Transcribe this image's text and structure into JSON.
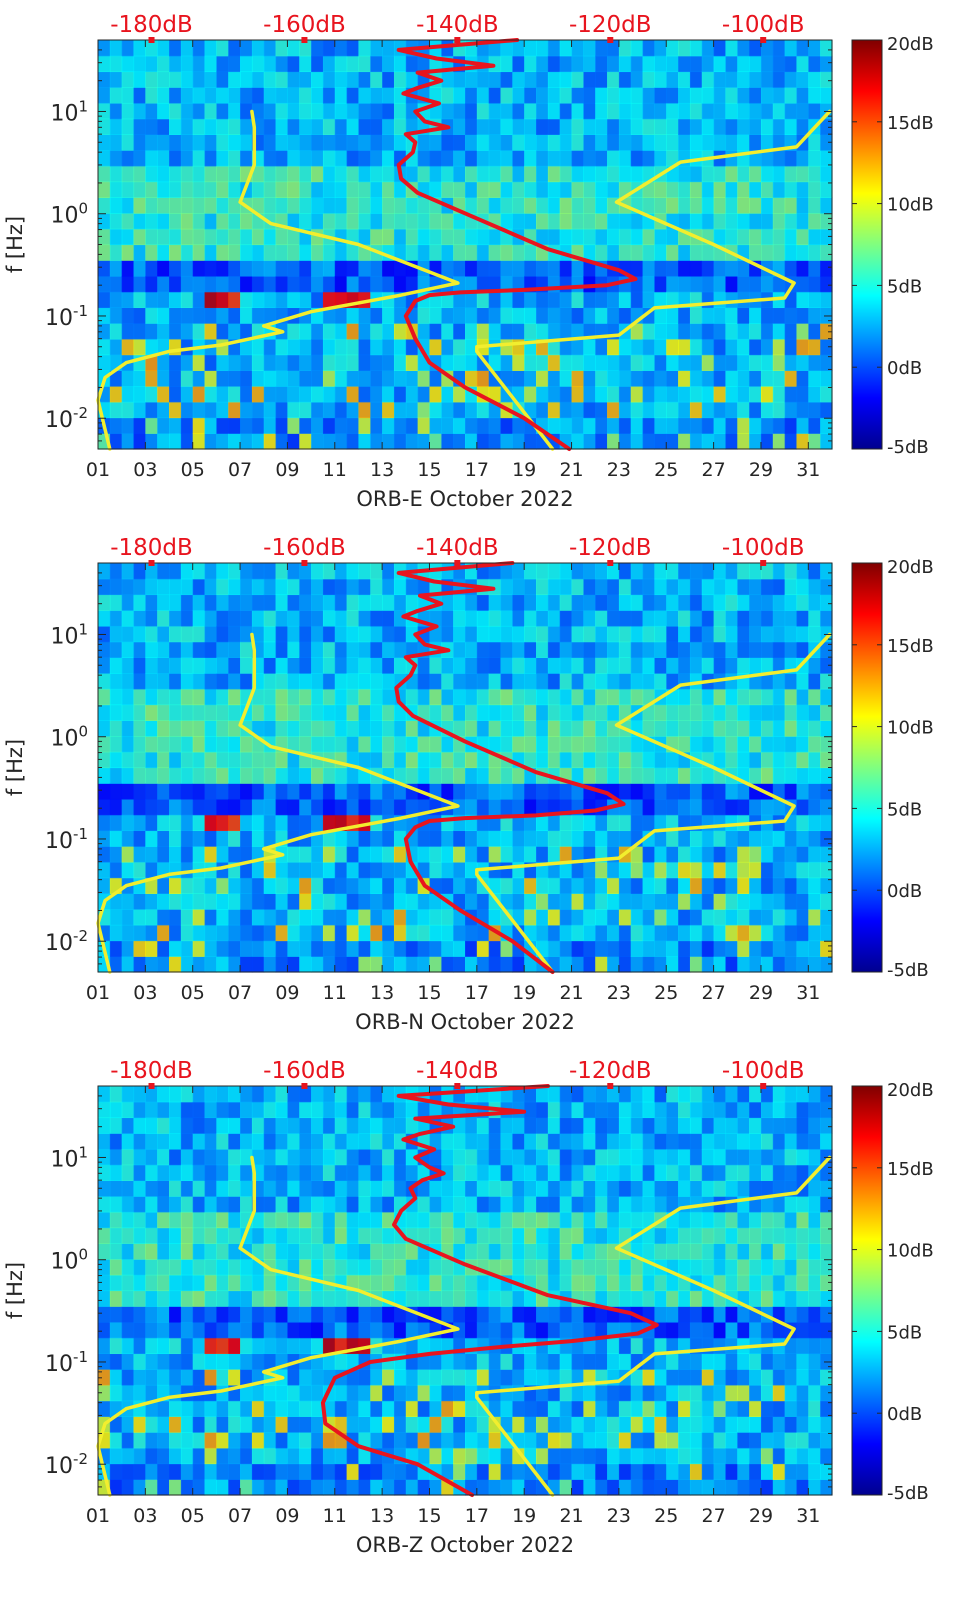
{
  "chart_data": [
    {
      "type": "heatmap",
      "title": "",
      "xlabel": "ORB-E October 2022",
      "ylabel": "f [Hz]",
      "x_ticks": [
        "01",
        "03",
        "05",
        "07",
        "09",
        "11",
        "13",
        "15",
        "17",
        "19",
        "21",
        "23",
        "25",
        "27",
        "29",
        "31"
      ],
      "x_tick_values": [
        1,
        3,
        5,
        7,
        9,
        11,
        13,
        15,
        17,
        19,
        21,
        23,
        25,
        27,
        29,
        31
      ],
      "xlim": [
        1,
        32
      ],
      "yscale": "log",
      "ylim": [
        0.005,
        50
      ],
      "y_ticks": [
        "10^{-2}",
        "10^{-1}",
        "10^{0}",
        "10^{1}"
      ],
      "top_axis_ticks": [
        "-180dB",
        "-160dB",
        "-140dB",
        "-120dB",
        "-100dB"
      ],
      "top_axis_range_dB": [
        -187,
        -91
      ],
      "colorbar": {
        "ticks": [
          "-5dB",
          "0dB",
          "5dB",
          "10dB",
          "15dB",
          "20dB"
        ],
        "range": [
          -5,
          20
        ]
      },
      "series": [
        {
          "name": "noise-model-low",
          "color": "#f2ee2e",
          "x": [
            1.5,
            1.0,
            1.3,
            2.2,
            4.0,
            6.2,
            8.8,
            8.0,
            10.0,
            13.8,
            16.2,
            12.0,
            8.3,
            7.0,
            7.6,
            7.6,
            7.5
          ],
          "y": [
            0.005,
            0.015,
            0.025,
            0.035,
            0.045,
            0.052,
            0.07,
            0.08,
            0.11,
            0.16,
            0.21,
            0.5,
            0.8,
            1.3,
            3.0,
            7.0,
            10.0
          ]
        },
        {
          "name": "noise-model-high",
          "color": "#f2ee2e",
          "x": [
            20.2,
            17.0,
            17.0,
            23.0,
            24.5,
            30.0,
            30.4,
            27.0,
            22.9,
            25.6,
            30.5,
            31.9
          ],
          "y": [
            0.005,
            0.045,
            0.05,
            0.065,
            0.12,
            0.15,
            0.21,
            0.5,
            1.3,
            3.2,
            4.5,
            10.0
          ]
        },
        {
          "name": "psd-median",
          "color": "#e8141e",
          "x": [
            20.9,
            19.0,
            16.5,
            15.0,
            14.4,
            14.0,
            14.4,
            15.0,
            16.3,
            19.0,
            22.5,
            23.7,
            23.0,
            20.0,
            17.0,
            14.5,
            13.8,
            13.7,
            14.3,
            14.4,
            14.0,
            15.8,
            14.8,
            14.4,
            15.4,
            13.9,
            14.5,
            15.5,
            14.5,
            17.7,
            15.3,
            13.7,
            18.7
          ],
          "y": [
            0.005,
            0.01,
            0.02,
            0.035,
            0.06,
            0.1,
            0.14,
            0.16,
            0.17,
            0.18,
            0.2,
            0.23,
            0.28,
            0.45,
            0.9,
            1.6,
            2.2,
            3.0,
            4.0,
            5.0,
            6.0,
            7.0,
            8.0,
            10.0,
            12.0,
            15.0,
            17.0,
            20.0,
            24.0,
            28.0,
            33.0,
            40.0,
            50.0
          ]
        }
      ]
    },
    {
      "type": "heatmap",
      "title": "",
      "xlabel": "ORB-N October 2022",
      "ylabel": "f [Hz]",
      "x_ticks": [
        "01",
        "03",
        "05",
        "07",
        "09",
        "11",
        "13",
        "15",
        "17",
        "19",
        "21",
        "23",
        "25",
        "27",
        "29",
        "31"
      ],
      "x_tick_values": [
        1,
        3,
        5,
        7,
        9,
        11,
        13,
        15,
        17,
        19,
        21,
        23,
        25,
        27,
        29,
        31
      ],
      "xlim": [
        1,
        32
      ],
      "yscale": "log",
      "ylim": [
        0.005,
        50
      ],
      "y_ticks": [
        "10^{-2}",
        "10^{-1}",
        "10^{0}",
        "10^{1}"
      ],
      "top_axis_ticks": [
        "-180dB",
        "-160dB",
        "-140dB",
        "-120dB",
        "-100dB"
      ],
      "top_axis_range_dB": [
        -187,
        -91
      ],
      "colorbar": {
        "ticks": [
          "-5dB",
          "0dB",
          "5dB",
          "10dB",
          "15dB",
          "20dB"
        ],
        "range": [
          -5,
          20
        ]
      },
      "series": [
        {
          "name": "noise-model-low",
          "color": "#f2ee2e",
          "x": [
            1.5,
            1.0,
            1.3,
            2.2,
            4.0,
            6.2,
            8.8,
            8.0,
            10.0,
            13.8,
            16.2,
            12.0,
            8.3,
            7.0,
            7.6,
            7.6,
            7.5
          ],
          "y": [
            0.005,
            0.015,
            0.025,
            0.035,
            0.045,
            0.052,
            0.07,
            0.08,
            0.11,
            0.16,
            0.21,
            0.5,
            0.8,
            1.3,
            3.0,
            7.0,
            10.0
          ]
        },
        {
          "name": "noise-model-high",
          "color": "#f2ee2e",
          "x": [
            20.2,
            17.0,
            17.0,
            23.0,
            24.5,
            30.0,
            30.4,
            27.0,
            22.9,
            25.6,
            30.5,
            31.9
          ],
          "y": [
            0.005,
            0.045,
            0.05,
            0.065,
            0.12,
            0.15,
            0.21,
            0.5,
            1.3,
            3.2,
            4.5,
            10.0
          ]
        },
        {
          "name": "psd-median",
          "color": "#e8141e",
          "x": [
            20.2,
            18.5,
            16.3,
            14.8,
            14.2,
            14.0,
            14.4,
            15.0,
            16.5,
            19.5,
            22.0,
            23.2,
            22.5,
            19.5,
            16.5,
            14.3,
            13.7,
            13.6,
            14.2,
            14.4,
            14.0,
            15.8,
            14.8,
            14.4,
            15.3,
            13.9,
            14.5,
            15.5,
            14.6,
            17.7,
            15.2,
            13.7,
            18.5
          ],
          "y": [
            0.005,
            0.01,
            0.02,
            0.035,
            0.06,
            0.1,
            0.13,
            0.15,
            0.16,
            0.17,
            0.19,
            0.22,
            0.28,
            0.45,
            0.9,
            1.6,
            2.2,
            3.0,
            4.0,
            5.0,
            6.0,
            7.0,
            8.0,
            10.0,
            12.0,
            15.0,
            17.0,
            20.0,
            24.0,
            28.0,
            33.0,
            40.0,
            50.0
          ]
        }
      ]
    },
    {
      "type": "heatmap",
      "title": "",
      "xlabel": "ORB-Z October 2022",
      "ylabel": "f [Hz]",
      "x_ticks": [
        "01",
        "03",
        "05",
        "07",
        "09",
        "11",
        "13",
        "15",
        "17",
        "19",
        "21",
        "23",
        "25",
        "27",
        "29",
        "31"
      ],
      "x_tick_values": [
        1,
        3,
        5,
        7,
        9,
        11,
        13,
        15,
        17,
        19,
        21,
        23,
        25,
        27,
        29,
        31
      ],
      "xlim": [
        1,
        32
      ],
      "yscale": "log",
      "ylim": [
        0.005,
        50
      ],
      "y_ticks": [
        "10^{-2}",
        "10^{-1}",
        "10^{0}",
        "10^{1}"
      ],
      "top_axis_ticks": [
        "-180dB",
        "-160dB",
        "-140dB",
        "-120dB",
        "-100dB"
      ],
      "top_axis_range_dB": [
        -187,
        -91
      ],
      "colorbar": {
        "ticks": [
          "-5dB",
          "0dB",
          "5dB",
          "10dB",
          "15dB",
          "20dB"
        ],
        "range": [
          -5,
          20
        ]
      },
      "series": [
        {
          "name": "noise-model-low",
          "color": "#f2ee2e",
          "x": [
            1.5,
            1.0,
            1.3,
            2.2,
            4.0,
            6.2,
            8.8,
            8.0,
            10.0,
            13.8,
            16.2,
            12.0,
            8.3,
            7.0,
            7.6,
            7.6,
            7.5
          ],
          "y": [
            0.005,
            0.015,
            0.025,
            0.035,
            0.045,
            0.052,
            0.07,
            0.08,
            0.11,
            0.16,
            0.21,
            0.5,
            0.8,
            1.3,
            3.0,
            7.0,
            10.0
          ]
        },
        {
          "name": "noise-model-high",
          "color": "#f2ee2e",
          "x": [
            20.2,
            17.0,
            17.0,
            23.0,
            24.5,
            30.0,
            30.4,
            27.0,
            22.9,
            25.6,
            30.5,
            31.9
          ],
          "y": [
            0.005,
            0.045,
            0.05,
            0.065,
            0.12,
            0.15,
            0.21,
            0.5,
            1.3,
            3.2,
            4.5,
            10.0
          ]
        },
        {
          "name": "psd-median",
          "color": "#e8141e",
          "x": [
            16.8,
            14.5,
            12.0,
            10.6,
            10.5,
            11.0,
            12.5,
            15.0,
            18.0,
            21.0,
            23.8,
            24.6,
            23.5,
            20.0,
            16.5,
            14.0,
            13.5,
            13.8,
            14.4,
            14.2,
            14.7,
            15.6,
            15.0,
            14.4,
            15.2,
            13.9,
            14.6,
            16.0,
            14.4,
            19.0,
            15.8,
            13.7,
            20.0
          ],
          "y": [
            0.005,
            0.01,
            0.015,
            0.025,
            0.04,
            0.07,
            0.1,
            0.12,
            0.14,
            0.16,
            0.19,
            0.23,
            0.3,
            0.45,
            0.9,
            1.6,
            2.2,
            3.0,
            4.0,
            5.0,
            6.0,
            7.0,
            8.0,
            10.0,
            12.0,
            15.0,
            17.0,
            20.0,
            24.0,
            28.0,
            33.0,
            40.0,
            50.0
          ]
        }
      ]
    }
  ]
}
